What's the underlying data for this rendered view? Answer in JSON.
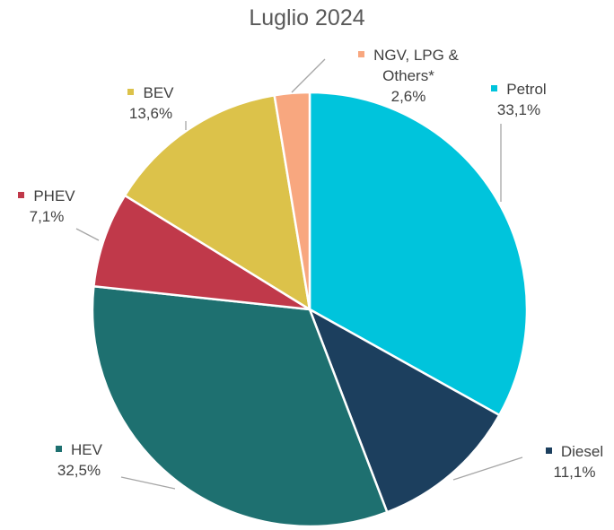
{
  "chart_data": {
    "type": "pie",
    "title": "Luglio 2024",
    "categories": [
      "Petrol",
      "Diesel",
      "HEV",
      "PHEV",
      "BEV",
      "NGV, LPG & Others*"
    ],
    "values": [
      33.1,
      11.1,
      32.5,
      7.1,
      13.6,
      2.6
    ],
    "value_labels": [
      "33,1%",
      "11,1%",
      "32,5%",
      "7,1%",
      "13,6%",
      "2,6%"
    ],
    "colors": [
      "#00c4dc",
      "#1c3f5e",
      "#1e7070",
      "#c0394a",
      "#dcc24a",
      "#f8a77f"
    ]
  }
}
